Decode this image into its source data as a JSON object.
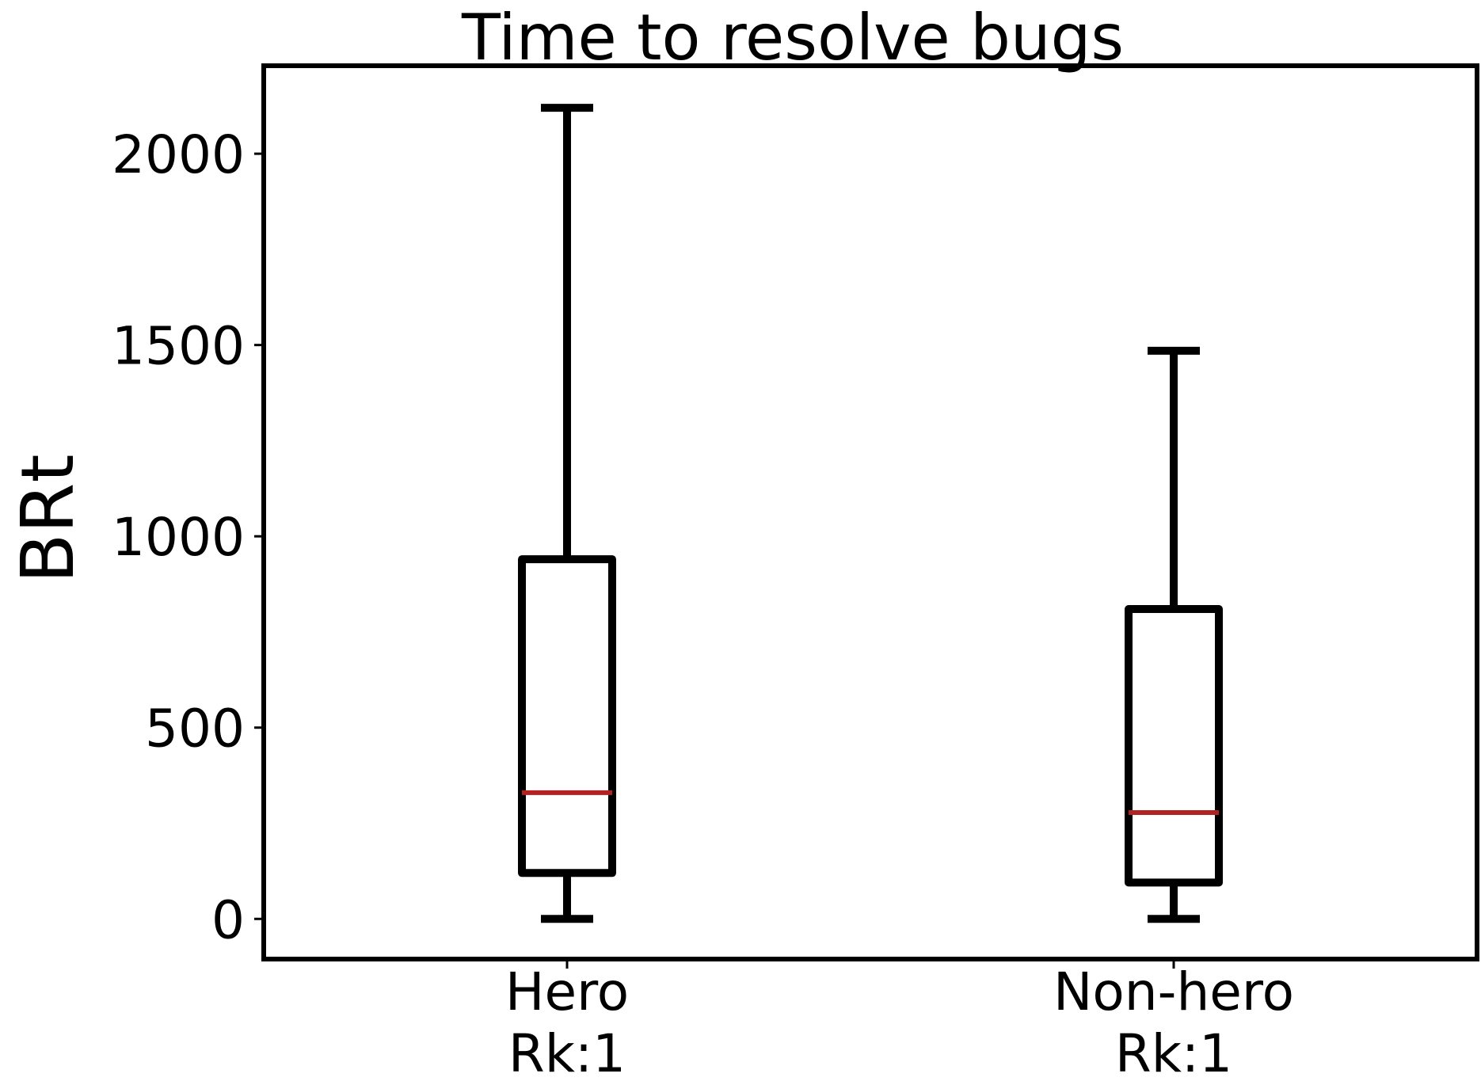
{
  "chart_data": {
    "type": "boxplot",
    "title": "Time to resolve bugs",
    "ylabel": "BRt",
    "xlabel": "",
    "ylim": [
      -105,
      2230
    ],
    "yticks": [
      0,
      500,
      1000,
      1500,
      2000
    ],
    "ytick_labels": [
      "0",
      "500",
      "1000",
      "1500",
      "2000"
    ],
    "grid": false,
    "categories": [
      {
        "label_line1": "Hero",
        "label_line2": "Rk:1"
      },
      {
        "label_line1": "Non-hero",
        "label_line2": "Rk:1"
      }
    ],
    "boxes": [
      {
        "whisker_low": 0,
        "q1": 120,
        "median": 330,
        "q3": 940,
        "whisker_high": 2120
      },
      {
        "whisker_low": 0,
        "q1": 95,
        "median": 278,
        "q3": 810,
        "whisker_high": 1485
      }
    ],
    "colors": {
      "box": "#000000",
      "median": "#b22222"
    }
  }
}
